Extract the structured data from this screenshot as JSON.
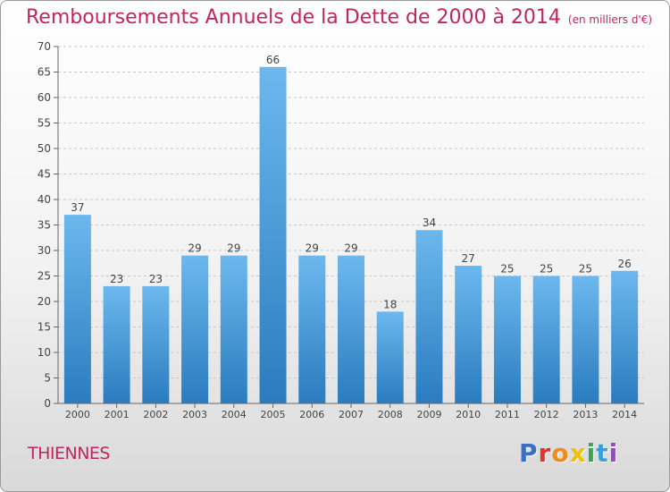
{
  "header": {
    "title": "Remboursements Annuels de la Dette de 2000 à 2014",
    "unit": "(en milliers d'€)"
  },
  "footer": {
    "commune": "THIENNES",
    "logo": [
      "P",
      "r",
      "o",
      "x",
      "i",
      "t",
      "i"
    ],
    "logo_colors": [
      "#3a6fc4",
      "#e3332c",
      "#f28c1a",
      "#f2c200",
      "#2fa84f",
      "#3a9fd9",
      "#8c4fb3"
    ]
  },
  "chart_data": {
    "type": "bar",
    "title": "Remboursements Annuels de la Dette de 2000 à 2014",
    "ylim": [
      0,
      70
    ],
    "yticks": [
      0,
      5,
      10,
      15,
      20,
      25,
      30,
      35,
      40,
      45,
      50,
      55,
      60,
      65,
      70
    ],
    "grid": true,
    "categories": [
      "2000",
      "2001",
      "2002",
      "2003",
      "2004",
      "2005",
      "2006",
      "2007",
      "2008",
      "2009",
      "2010",
      "2011",
      "2012",
      "2013",
      "2014"
    ],
    "values": [
      37,
      23,
      23,
      29,
      29,
      66,
      29,
      29,
      18,
      34,
      27,
      25,
      25,
      25,
      26
    ],
    "bar_color_light": "#6cb8ee",
    "bar_color_dark": "#2a7cbf"
  }
}
